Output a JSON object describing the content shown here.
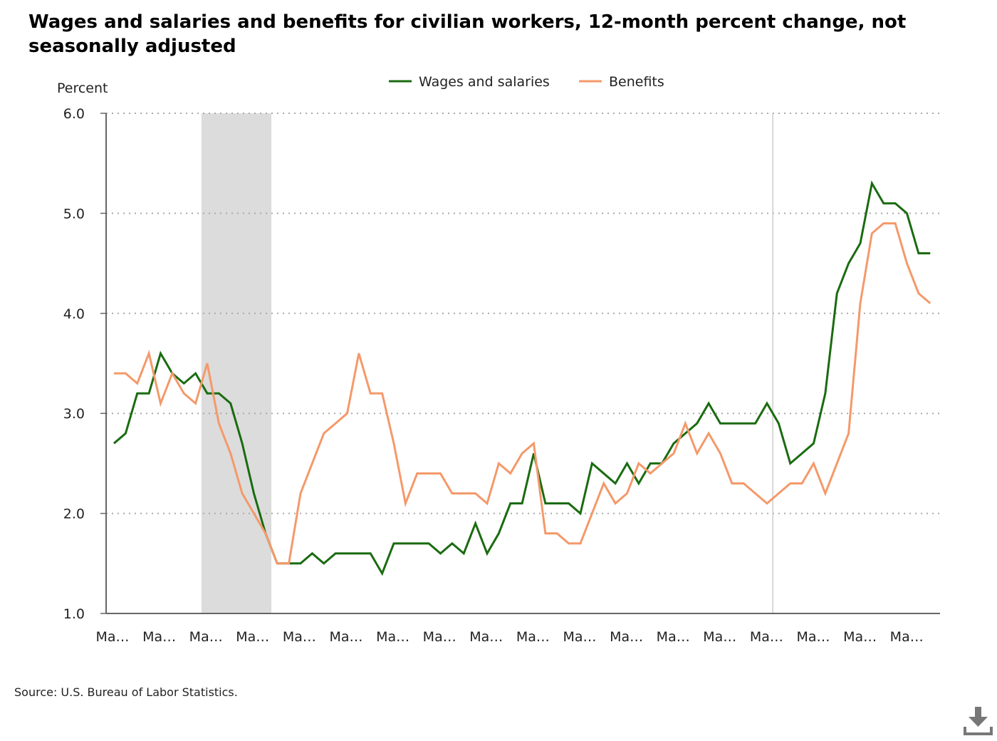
{
  "chart_data": {
    "type": "line",
    "title": "Wages and salaries and benefits for civilian workers, 12-month percent change, not seasonally adjusted",
    "ylabel": "Percent",
    "xlabel": "",
    "ylim": [
      1.0,
      6.0
    ],
    "yticks": [
      "1.0",
      "2.0",
      "3.0",
      "4.0",
      "5.0",
      "6.0"
    ],
    "xtick_labels": [
      "Ma…",
      "Ma…",
      "Ma…",
      "Ma…",
      "Ma…",
      "Ma…",
      "Ma…",
      "Ma…",
      "Ma…",
      "Ma…",
      "Ma…",
      "Ma…",
      "Ma…",
      "Ma…",
      "Ma…",
      "Ma…",
      "Ma…",
      "Ma…"
    ],
    "grid": "horizontal dotted",
    "legend_position": "top-center",
    "recession_shading": {
      "start_index": 7.5,
      "end_index": 13.5
    },
    "reference_line_index": 56.5,
    "colors": {
      "wages": "#1a6b10",
      "benefits": "#f4996a",
      "shading": "#dcdcdc",
      "grid": "#aaaaaa",
      "axis": "#666666"
    },
    "series": [
      {
        "name": "Wages and salaries",
        "color": "#1a6b10",
        "values": [
          2.7,
          2.8,
          3.2,
          3.2,
          3.6,
          3.4,
          3.3,
          3.4,
          3.2,
          3.2,
          3.1,
          2.7,
          2.2,
          1.8,
          1.5,
          1.5,
          1.5,
          1.6,
          1.5,
          1.6,
          1.6,
          1.6,
          1.6,
          1.4,
          1.7,
          1.7,
          1.7,
          1.7,
          1.6,
          1.7,
          1.6,
          1.9,
          1.6,
          1.8,
          2.1,
          2.1,
          2.6,
          2.1,
          2.1,
          2.1,
          2.0,
          2.5,
          2.4,
          2.3,
          2.5,
          2.3,
          2.5,
          2.5,
          2.7,
          2.8,
          2.9,
          3.1,
          2.9,
          2.9,
          2.9,
          2.9,
          3.1,
          2.9,
          2.5,
          2.6,
          2.7,
          3.2,
          4.2,
          4.5,
          4.7,
          5.3,
          5.1,
          5.1,
          5.0,
          4.6,
          4.6
        ]
      },
      {
        "name": "Benefits",
        "color": "#f4996a",
        "values": [
          3.4,
          3.4,
          3.3,
          3.6,
          3.1,
          3.4,
          3.2,
          3.1,
          3.5,
          2.9,
          2.6,
          2.2,
          2.0,
          1.8,
          1.5,
          1.5,
          2.2,
          2.5,
          2.8,
          2.9,
          3.0,
          3.6,
          3.2,
          3.2,
          2.7,
          2.1,
          2.4,
          2.4,
          2.4,
          2.2,
          2.2,
          2.2,
          2.1,
          2.5,
          2.4,
          2.6,
          2.7,
          1.8,
          1.8,
          1.7,
          1.7,
          2.0,
          2.3,
          2.1,
          2.2,
          2.5,
          2.4,
          2.5,
          2.6,
          2.9,
          2.6,
          2.8,
          2.6,
          2.3,
          2.3,
          2.2,
          2.1,
          2.2,
          2.3,
          2.3,
          2.5,
          2.2,
          2.5,
          2.8,
          4.1,
          4.8,
          4.9,
          4.9,
          4.5,
          4.2,
          4.1
        ]
      }
    ]
  },
  "source": "Source: U.S. Bureau of Labor Statistics.",
  "download": {
    "icon": "download-icon"
  }
}
